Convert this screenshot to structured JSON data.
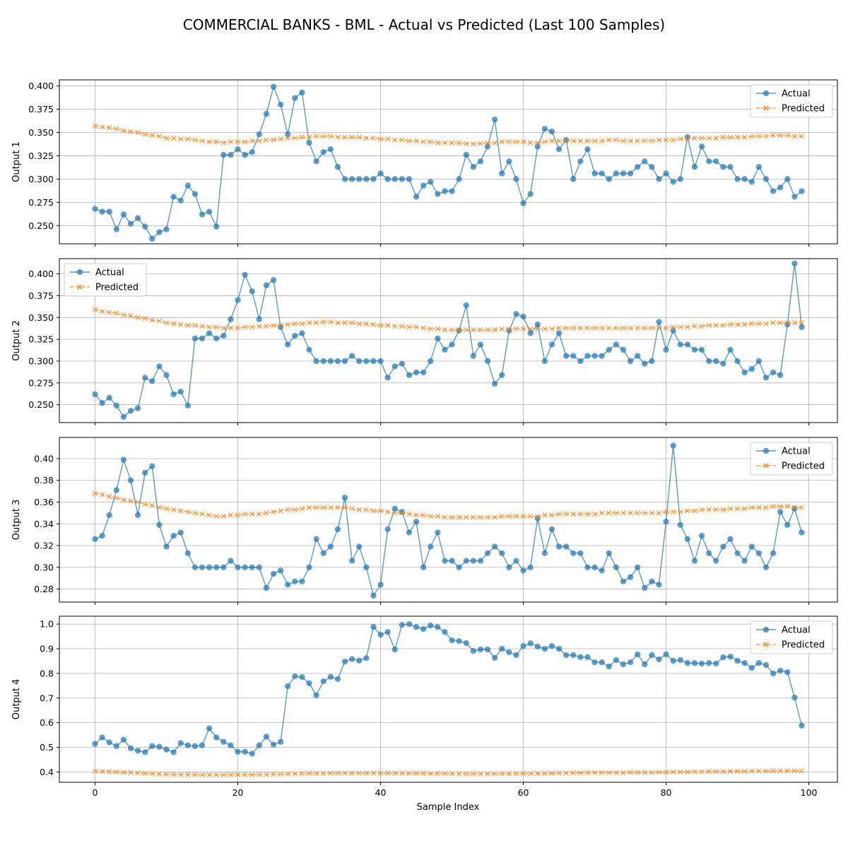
{
  "figure": {
    "title": "COMMERCIAL BANKS - BML - Actual vs Predicted (Last 100 Samples)",
    "xlabel": "Sample Index"
  },
  "colors": {
    "actual": "#1f77b4",
    "predicted": "#ff7f0e",
    "grid": "#b0b0b0"
  },
  "chart_data": [
    {
      "type": "line",
      "ylabel": "Output 1",
      "xlim": [
        -5,
        104
      ],
      "ylim": [
        0.2305,
        0.4065
      ],
      "xticks": [
        0,
        20,
        40,
        60,
        80,
        100
      ],
      "yticks": [
        0.25,
        0.275,
        0.3,
        0.325,
        0.35,
        0.375,
        0.4
      ],
      "ytick_labels": [
        "0.250",
        "0.275",
        "0.300",
        "0.325",
        "0.350",
        "0.375",
        "0.400"
      ],
      "legend": "upper right",
      "grid": true,
      "series": [
        {
          "name": "Actual",
          "marker": "o",
          "values": [
            0.268,
            0.265,
            0.265,
            0.246,
            0.262,
            0.252,
            0.258,
            0.249,
            0.236,
            0.243,
            0.246,
            0.281,
            0.277,
            0.293,
            0.284,
            0.262,
            0.265,
            0.249,
            0.326,
            0.326,
            0.332,
            0.326,
            0.329,
            0.348,
            0.37,
            0.399,
            0.38,
            0.348,
            0.387,
            0.393,
            0.339,
            0.319,
            0.329,
            0.332,
            0.313,
            0.3,
            0.3,
            0.3,
            0.3,
            0.3,
            0.306,
            0.3,
            0.3,
            0.3,
            0.3,
            0.281,
            0.293,
            0.297,
            0.284,
            0.287,
            0.287,
            0.3,
            0.326,
            0.313,
            0.319,
            0.335,
            0.364,
            0.306,
            0.319,
            0.3,
            0.274,
            0.284,
            0.335,
            0.354,
            0.351,
            0.332,
            0.342,
            0.3,
            0.319,
            0.332,
            0.306,
            0.306,
            0.3,
            0.306,
            0.306,
            0.306,
            0.313,
            0.319,
            0.313,
            0.3,
            0.306,
            0.297,
            0.3,
            0.345,
            0.313,
            0.335,
            0.319,
            0.319,
            0.313,
            0.313,
            0.3,
            0.3,
            0.297,
            0.313,
            0.3,
            0.287,
            0.291,
            0.3,
            0.281,
            0.287
          ]
        },
        {
          "name": "Predicted",
          "marker": "x",
          "values": [
            0.357,
            0.356,
            0.355,
            0.354,
            0.352,
            0.351,
            0.35,
            0.348,
            0.347,
            0.346,
            0.344,
            0.344,
            0.343,
            0.343,
            0.342,
            0.341,
            0.34,
            0.34,
            0.339,
            0.34,
            0.34,
            0.34,
            0.341,
            0.341,
            0.342,
            0.342,
            0.343,
            0.344,
            0.344,
            0.345,
            0.345,
            0.346,
            0.346,
            0.346,
            0.345,
            0.345,
            0.345,
            0.345,
            0.344,
            0.344,
            0.343,
            0.343,
            0.342,
            0.342,
            0.341,
            0.341,
            0.34,
            0.34,
            0.339,
            0.339,
            0.339,
            0.339,
            0.338,
            0.338,
            0.338,
            0.339,
            0.339,
            0.34,
            0.34,
            0.34,
            0.34,
            0.339,
            0.339,
            0.34,
            0.341,
            0.341,
            0.341,
            0.341,
            0.341,
            0.341,
            0.341,
            0.341,
            0.342,
            0.342,
            0.341,
            0.341,
            0.341,
            0.341,
            0.341,
            0.342,
            0.342,
            0.342,
            0.343,
            0.343,
            0.344,
            0.344,
            0.344,
            0.344,
            0.345,
            0.345,
            0.345,
            0.345,
            0.346,
            0.346,
            0.346,
            0.347,
            0.347,
            0.347,
            0.346,
            0.346
          ]
        }
      ]
    },
    {
      "type": "line",
      "ylabel": "Output 2",
      "xlim": [
        -5,
        104
      ],
      "ylim": [
        0.2295,
        0.4175
      ],
      "xticks": [
        0,
        20,
        40,
        60,
        80,
        100
      ],
      "yticks": [
        0.25,
        0.275,
        0.3,
        0.325,
        0.35,
        0.375,
        0.4
      ],
      "ytick_labels": [
        "0.250",
        "0.275",
        "0.300",
        "0.325",
        "0.350",
        "0.375",
        "0.400"
      ],
      "legend": "upper left",
      "grid": true,
      "series": [
        {
          "name": "Actual",
          "marker": "o",
          "values": [
            0.262,
            0.252,
            0.258,
            0.249,
            0.236,
            0.243,
            0.246,
            0.281,
            0.277,
            0.294,
            0.284,
            0.262,
            0.265,
            0.249,
            0.326,
            0.326,
            0.332,
            0.326,
            0.329,
            0.348,
            0.37,
            0.399,
            0.38,
            0.348,
            0.387,
            0.393,
            0.339,
            0.319,
            0.329,
            0.332,
            0.313,
            0.3,
            0.3,
            0.3,
            0.3,
            0.3,
            0.306,
            0.3,
            0.3,
            0.3,
            0.3,
            0.281,
            0.294,
            0.297,
            0.284,
            0.287,
            0.287,
            0.3,
            0.326,
            0.313,
            0.319,
            0.335,
            0.364,
            0.306,
            0.319,
            0.3,
            0.274,
            0.284,
            0.335,
            0.354,
            0.351,
            0.332,
            0.342,
            0.3,
            0.319,
            0.332,
            0.306,
            0.306,
            0.3,
            0.306,
            0.306,
            0.306,
            0.313,
            0.319,
            0.313,
            0.3,
            0.306,
            0.297,
            0.3,
            0.345,
            0.313,
            0.335,
            0.319,
            0.319,
            0.313,
            0.313,
            0.3,
            0.3,
            0.297,
            0.313,
            0.3,
            0.287,
            0.291,
            0.3,
            0.281,
            0.287,
            0.284,
            0.342,
            0.412,
            0.339
          ]
        },
        {
          "name": "Predicted",
          "marker": "x",
          "values": [
            0.359,
            0.357,
            0.356,
            0.355,
            0.353,
            0.352,
            0.35,
            0.349,
            0.347,
            0.346,
            0.344,
            0.343,
            0.342,
            0.341,
            0.341,
            0.34,
            0.339,
            0.339,
            0.338,
            0.338,
            0.338,
            0.339,
            0.339,
            0.34,
            0.34,
            0.341,
            0.341,
            0.342,
            0.343,
            0.343,
            0.344,
            0.344,
            0.345,
            0.345,
            0.344,
            0.344,
            0.344,
            0.343,
            0.343,
            0.342,
            0.341,
            0.341,
            0.34,
            0.34,
            0.339,
            0.339,
            0.338,
            0.337,
            0.337,
            0.336,
            0.336,
            0.336,
            0.336,
            0.336,
            0.336,
            0.336,
            0.336,
            0.337,
            0.337,
            0.337,
            0.337,
            0.337,
            0.337,
            0.337,
            0.337,
            0.338,
            0.338,
            0.338,
            0.338,
            0.338,
            0.338,
            0.338,
            0.338,
            0.338,
            0.338,
            0.338,
            0.338,
            0.338,
            0.338,
            0.338,
            0.338,
            0.339,
            0.339,
            0.339,
            0.34,
            0.34,
            0.341,
            0.341,
            0.341,
            0.342,
            0.342,
            0.342,
            0.343,
            0.343,
            0.343,
            0.344,
            0.344,
            0.344,
            0.344,
            0.344
          ]
        }
      ]
    },
    {
      "type": "line",
      "ylabel": "Output 3",
      "xlim": [
        -5,
        104
      ],
      "ylim": [
        0.268,
        0.4195
      ],
      "xticks": [
        0,
        20,
        40,
        60,
        80,
        100
      ],
      "yticks": [
        0.28,
        0.3,
        0.32,
        0.34,
        0.36,
        0.38,
        0.4
      ],
      "ytick_labels": [
        "0.28",
        "0.30",
        "0.32",
        "0.34",
        "0.36",
        "0.38",
        "0.40"
      ],
      "legend": "upper right",
      "grid": true,
      "series": [
        {
          "name": "Actual",
          "marker": "o",
          "values": [
            0.326,
            0.329,
            0.348,
            0.371,
            0.399,
            0.38,
            0.348,
            0.387,
            0.393,
            0.339,
            0.319,
            0.329,
            0.332,
            0.313,
            0.3,
            0.3,
            0.3,
            0.3,
            0.3,
            0.306,
            0.3,
            0.3,
            0.3,
            0.3,
            0.281,
            0.294,
            0.297,
            0.284,
            0.287,
            0.287,
            0.3,
            0.326,
            0.313,
            0.319,
            0.335,
            0.364,
            0.306,
            0.319,
            0.3,
            0.274,
            0.284,
            0.335,
            0.354,
            0.351,
            0.332,
            0.342,
            0.3,
            0.319,
            0.332,
            0.306,
            0.306,
            0.3,
            0.306,
            0.306,
            0.306,
            0.313,
            0.319,
            0.313,
            0.3,
            0.306,
            0.297,
            0.3,
            0.345,
            0.313,
            0.335,
            0.319,
            0.319,
            0.313,
            0.313,
            0.3,
            0.3,
            0.297,
            0.313,
            0.3,
            0.287,
            0.291,
            0.3,
            0.281,
            0.287,
            0.284,
            0.342,
            0.412,
            0.339,
            0.326,
            0.306,
            0.329,
            0.313,
            0.306,
            0.319,
            0.326,
            0.313,
            0.306,
            0.319,
            0.313,
            0.3,
            0.313,
            0.351,
            0.339,
            0.354,
            0.332
          ]
        },
        {
          "name": "Predicted",
          "marker": "x",
          "values": [
            0.368,
            0.367,
            0.365,
            0.364,
            0.362,
            0.361,
            0.36,
            0.358,
            0.357,
            0.355,
            0.354,
            0.353,
            0.352,
            0.351,
            0.35,
            0.349,
            0.348,
            0.347,
            0.347,
            0.348,
            0.348,
            0.349,
            0.349,
            0.349,
            0.35,
            0.351,
            0.352,
            0.353,
            0.353,
            0.354,
            0.355,
            0.355,
            0.355,
            0.355,
            0.355,
            0.355,
            0.354,
            0.353,
            0.353,
            0.352,
            0.352,
            0.351,
            0.35,
            0.35,
            0.349,
            0.348,
            0.348,
            0.347,
            0.347,
            0.346,
            0.346,
            0.346,
            0.346,
            0.346,
            0.346,
            0.346,
            0.346,
            0.347,
            0.347,
            0.347,
            0.347,
            0.347,
            0.347,
            0.348,
            0.348,
            0.349,
            0.349,
            0.349,
            0.349,
            0.349,
            0.349,
            0.35,
            0.35,
            0.35,
            0.35,
            0.35,
            0.35,
            0.35,
            0.35,
            0.35,
            0.351,
            0.351,
            0.351,
            0.352,
            0.352,
            0.353,
            0.353,
            0.353,
            0.353,
            0.354,
            0.354,
            0.354,
            0.355,
            0.355,
            0.355,
            0.356,
            0.356,
            0.356,
            0.355,
            0.355
          ]
        }
      ]
    },
    {
      "type": "line",
      "ylabel": "Output 4",
      "xlim": [
        -5,
        104
      ],
      "ylim": [
        0.358,
        1.032
      ],
      "xticks": [
        0,
        20,
        40,
        60,
        80,
        100
      ],
      "yticks": [
        0.4,
        0.5,
        0.6,
        0.7,
        0.8,
        0.9,
        1.0
      ],
      "ytick_labels": [
        "0.4",
        "0.5",
        "0.6",
        "0.7",
        "0.8",
        "0.9",
        "1.0"
      ],
      "legend": "upper right",
      "grid": true,
      "series": [
        {
          "name": "Actual",
          "marker": "o",
          "values": [
            0.514,
            0.54,
            0.52,
            0.505,
            0.531,
            0.496,
            0.486,
            0.48,
            0.505,
            0.502,
            0.491,
            0.48,
            0.517,
            0.508,
            0.505,
            0.508,
            0.577,
            0.54,
            0.522,
            0.508,
            0.482,
            0.482,
            0.474,
            0.508,
            0.543,
            0.511,
            0.522,
            0.748,
            0.788,
            0.785,
            0.76,
            0.711,
            0.768,
            0.786,
            0.777,
            0.848,
            0.858,
            0.852,
            0.862,
            0.989,
            0.957,
            0.968,
            0.897,
            0.997,
            1.0,
            0.988,
            0.98,
            0.994,
            0.988,
            0.968,
            0.934,
            0.931,
            0.923,
            0.891,
            0.897,
            0.897,
            0.863,
            0.9,
            0.886,
            0.874,
            0.911,
            0.922,
            0.909,
            0.9,
            0.911,
            0.9,
            0.874,
            0.874,
            0.866,
            0.866,
            0.845,
            0.845,
            0.828,
            0.854,
            0.837,
            0.845,
            0.877,
            0.837,
            0.874,
            0.857,
            0.877,
            0.851,
            0.854,
            0.842,
            0.842,
            0.84,
            0.842,
            0.84,
            0.865,
            0.868,
            0.851,
            0.842,
            0.822,
            0.842,
            0.834,
            0.8,
            0.811,
            0.805,
            0.702,
            0.588
          ]
        },
        {
          "name": "Predicted",
          "marker": "x",
          "values": [
            0.403,
            0.402,
            0.401,
            0.4,
            0.398,
            0.397,
            0.396,
            0.394,
            0.393,
            0.392,
            0.391,
            0.39,
            0.39,
            0.389,
            0.389,
            0.388,
            0.388,
            0.388,
            0.388,
            0.388,
            0.389,
            0.389,
            0.389,
            0.39,
            0.39,
            0.391,
            0.391,
            0.392,
            0.392,
            0.393,
            0.394,
            0.394,
            0.394,
            0.395,
            0.395,
            0.395,
            0.395,
            0.395,
            0.395,
            0.395,
            0.395,
            0.395,
            0.395,
            0.395,
            0.394,
            0.394,
            0.394,
            0.393,
            0.393,
            0.393,
            0.393,
            0.392,
            0.392,
            0.392,
            0.392,
            0.392,
            0.392,
            0.393,
            0.393,
            0.393,
            0.393,
            0.393,
            0.394,
            0.394,
            0.394,
            0.395,
            0.395,
            0.396,
            0.396,
            0.397,
            0.397,
            0.397,
            0.397,
            0.397,
            0.397,
            0.398,
            0.398,
            0.398,
            0.398,
            0.399,
            0.399,
            0.4,
            0.4,
            0.4,
            0.401,
            0.401,
            0.402,
            0.402,
            0.402,
            0.403,
            0.403,
            0.403,
            0.404,
            0.404,
            0.404,
            0.405,
            0.405,
            0.405,
            0.405,
            0.405
          ]
        }
      ]
    }
  ]
}
